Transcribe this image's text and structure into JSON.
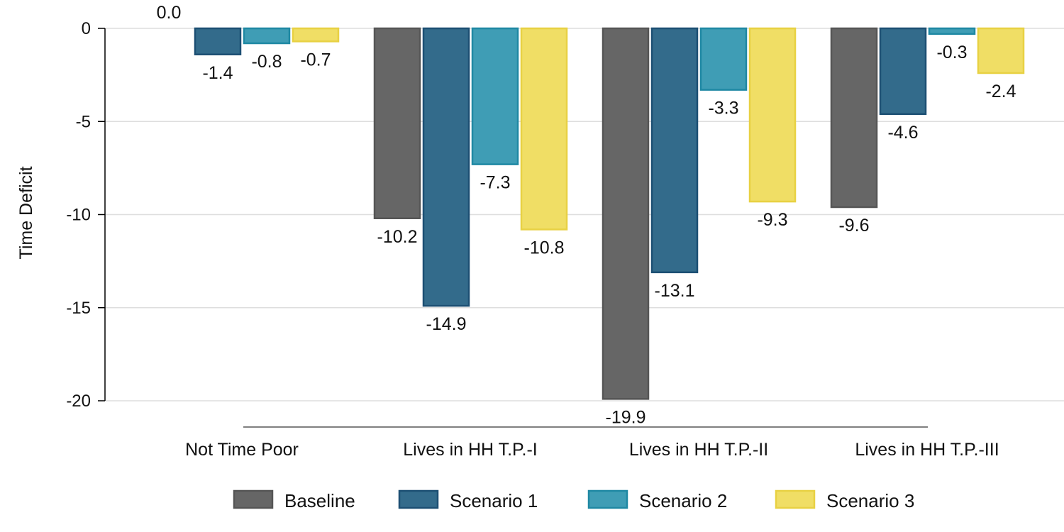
{
  "chart_data": {
    "type": "bar",
    "ylabel": "Time Deficit",
    "xlabel": "",
    "ylim": [
      -20,
      0
    ],
    "yticks": [
      0,
      -5,
      -10,
      -15,
      -20
    ],
    "grid": true,
    "legend_position": "bottom",
    "categories": [
      "Not Time Poor",
      "Lives in HH T.P.-I",
      "Lives in HH T.P.-II",
      "Lives in HH T.P.-III"
    ],
    "series": [
      {
        "name": "Baseline",
        "color": "#666666",
        "stroke": "#555555",
        "values": [
          0.0,
          -10.2,
          -19.9,
          -9.6
        ],
        "labels": [
          "0.0",
          "-10.2",
          "-19.9",
          "-9.6"
        ]
      },
      {
        "name": "Scenario 1",
        "color": "#336b8b",
        "stroke": "#1c4f73",
        "values": [
          -1.4,
          -14.9,
          -13.1,
          -4.6
        ],
        "labels": [
          "-1.4",
          "-14.9",
          "-13.1",
          "-4.6"
        ]
      },
      {
        "name": "Scenario 2",
        "color": "#3f9db5",
        "stroke": "#1f88a3",
        "values": [
          -0.8,
          -7.3,
          -3.3,
          -0.3
        ],
        "labels": [
          "-0.8",
          "-7.3",
          "-3.3",
          "-0.3"
        ]
      },
      {
        "name": "Scenario 3",
        "color": "#f0de65",
        "stroke": "#e8d143",
        "values": [
          -0.7,
          -10.8,
          -9.3,
          -2.4
        ],
        "labels": [
          "-0.7",
          "-10.8",
          "-9.3",
          "-2.4"
        ]
      }
    ]
  }
}
